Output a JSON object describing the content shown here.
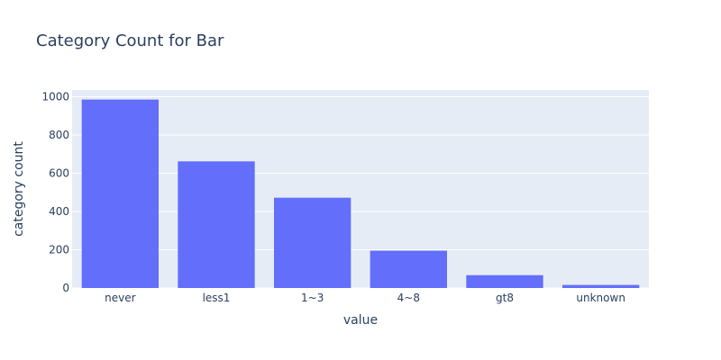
{
  "chart_data": {
    "type": "bar",
    "title": "Category Count for Bar",
    "xlabel": "value",
    "ylabel": "category count",
    "categories": [
      "never",
      "less1",
      "1~3",
      "4~8",
      "gt8",
      "unknown"
    ],
    "values": [
      985,
      662,
      472,
      195,
      67,
      16
    ],
    "ylim": [
      0,
      1035
    ],
    "yticks": [
      0,
      200,
      400,
      600,
      800,
      1000
    ],
    "grid": true,
    "legend": "none",
    "colors": {
      "bar": "#636efa",
      "plot_bg": "#e5ecf6",
      "grid": "#ffffff",
      "text": "#2a3f5f",
      "paper_bg": "#ffffff"
    }
  }
}
